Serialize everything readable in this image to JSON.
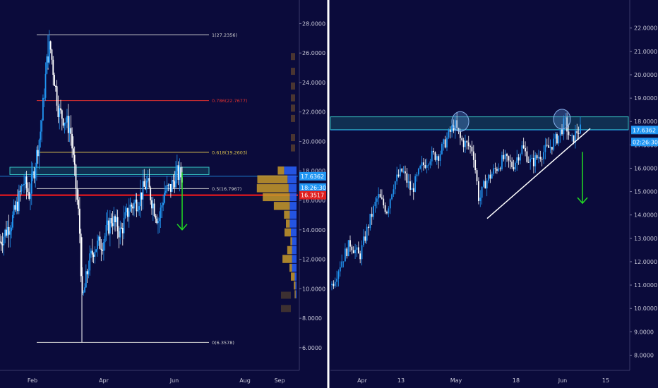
{
  "colors": {
    "background": "#0b0b3b",
    "bull": "#2196f3",
    "bear": "#ffffff",
    "divider": "#ffffff",
    "support_red": "#ff1a1a",
    "zone": "#1f8f8f",
    "arrow": "#22dd22",
    "price_tag": "#2196f3",
    "red_tag": "#e01e1e",
    "vp_up": "#2962ff",
    "vp_down": "#c89a2a"
  },
  "chart_data": [
    {
      "type": "candlestick",
      "panel": "left",
      "x_ticks": [
        "Feb",
        "Apr",
        "Jun",
        "Aug",
        "Sep"
      ],
      "y_ticks": [
        "6.0000",
        "8.0000",
        "10.0000",
        "12.0000",
        "14.0000",
        "16.0000",
        "18.0000",
        "20.0000",
        "22.0000",
        "24.0000",
        "26.0000",
        "28.0000"
      ],
      "ylim": [
        4.7,
        29.6
      ],
      "price_labels": [
        {
          "text": "17.6362",
          "value": 17.6362,
          "color": "#2196f3"
        },
        {
          "text": "18:26:30",
          "value": 17.0,
          "color": "#2196f3"
        },
        {
          "text": "16.3517",
          "value": 16.3517,
          "color": "#e01e1e"
        }
      ],
      "fibonacci": [
        {
          "label": "1(27.2356)",
          "value": 27.2356,
          "color": "#d0d0d0"
        },
        {
          "label": "0.786(22.7677)",
          "value": 22.7677,
          "color": "#e03030"
        },
        {
          "label": "0.618(19.2603)",
          "value": 19.2603,
          "color": "#d8c050"
        },
        {
          "label": "0.5(16.7967)",
          "value": 16.7967,
          "color": "#d0d0d0"
        },
        {
          "label": "0(6.3578)",
          "value": 6.3578,
          "color": "#d0d0d0"
        }
      ],
      "support_line": 16.3517,
      "resistance_zone": [
        17.75,
        18.25
      ],
      "arrow": {
        "from": 17.9,
        "to": 14.0,
        "direction": "down"
      },
      "volume_profile": [
        {
          "price": 18.0,
          "up": 0.55,
          "down": 0.2
        },
        {
          "price": 17.4,
          "up": 0.4,
          "down": 0.95
        },
        {
          "price": 16.8,
          "up": 0.35,
          "down": 1.0
        },
        {
          "price": 16.2,
          "up": 0.3,
          "down": 0.85
        },
        {
          "price": 15.6,
          "up": 0.3,
          "down": 0.5
        },
        {
          "price": 15.0,
          "up": 0.3,
          "down": 0.18
        },
        {
          "price": 14.4,
          "up": 0.3,
          "down": 0.12
        },
        {
          "price": 13.8,
          "up": 0.25,
          "down": 0.2
        },
        {
          "price": 13.2,
          "up": 0.2,
          "down": 0.05
        },
        {
          "price": 12.6,
          "up": 0.2,
          "down": 0.15
        },
        {
          "price": 12.0,
          "up": 0.2,
          "down": 0.3
        },
        {
          "price": 11.4,
          "up": 0.2,
          "down": 0.08
        },
        {
          "price": 10.8,
          "up": 0.08,
          "down": 0.12
        },
        {
          "price": 10.2,
          "up": 0.05,
          "down": 0.05
        },
        {
          "price": 9.6,
          "up": 0.04,
          "down": 0.03
        }
      ],
      "closes": [
        {
          "t": 0.0,
          "c": 13.2
        },
        {
          "t": 0.02,
          "c": 13.9
        },
        {
          "t": 0.04,
          "c": 14.6
        },
        {
          "t": 0.06,
          "c": 15.8
        },
        {
          "t": 0.08,
          "c": 17.3
        },
        {
          "t": 0.1,
          "c": 16.4
        },
        {
          "t": 0.12,
          "c": 18.5
        },
        {
          "t": 0.14,
          "c": 21.0
        },
        {
          "t": 0.16,
          "c": 25.5
        },
        {
          "t": 0.17,
          "c": 26.6
        },
        {
          "t": 0.18,
          "c": 25.0
        },
        {
          "t": 0.2,
          "c": 22.0
        },
        {
          "t": 0.22,
          "c": 21.5
        },
        {
          "t": 0.24,
          "c": 20.8
        },
        {
          "t": 0.26,
          "c": 16.5
        },
        {
          "t": 0.27,
          "c": 14.5
        },
        {
          "t": 0.28,
          "c": 9.0
        },
        {
          "t": 0.3,
          "c": 11.5
        },
        {
          "t": 0.32,
          "c": 12.8
        },
        {
          "t": 0.35,
          "c": 13.2
        },
        {
          "t": 0.38,
          "c": 14.8
        },
        {
          "t": 0.41,
          "c": 13.8
        },
        {
          "t": 0.44,
          "c": 15.5
        },
        {
          "t": 0.47,
          "c": 16.0
        },
        {
          "t": 0.5,
          "c": 17.2
        },
        {
          "t": 0.52,
          "c": 15.8
        },
        {
          "t": 0.54,
          "c": 14.6
        },
        {
          "t": 0.56,
          "c": 16.6
        },
        {
          "t": 0.58,
          "c": 16.8
        },
        {
          "t": 0.6,
          "c": 17.8
        },
        {
          "t": 0.62,
          "c": 17.64
        }
      ]
    },
    {
      "type": "candlestick",
      "panel": "right",
      "x_ticks": [
        "Apr",
        "13",
        "May",
        "18",
        "Jun",
        "15"
      ],
      "y_ticks": [
        "8.0000",
        "9.0000",
        "10.0000",
        "11.0000",
        "12.0000",
        "13.0000",
        "14.0000",
        "15.0000",
        "16.0000",
        "17.0000",
        "18.0000",
        "19.0000",
        "20.0000",
        "21.0000",
        "22.0000"
      ],
      "ylim": [
        7.5,
        23.2
      ],
      "price_labels": [
        {
          "text": "17.6362",
          "value": 17.6362,
          "color": "#2196f3"
        },
        {
          "text": "02:26:30",
          "value": 17.0,
          "color": "#2196f3"
        }
      ],
      "resistance_zone": [
        17.65,
        18.2
      ],
      "highlight_circles": [
        18.0,
        18.1
      ],
      "trendline": {
        "from": 13.85,
        "to": 17.7
      },
      "arrow": {
        "from": 16.7,
        "to": 14.5,
        "direction": "down"
      },
      "closes": [
        {
          "t": 0.0,
          "c": 11.0
        },
        {
          "t": 0.03,
          "c": 12.0
        },
        {
          "t": 0.06,
          "c": 12.8
        },
        {
          "t": 0.09,
          "c": 12.2
        },
        {
          "t": 0.12,
          "c": 13.6
        },
        {
          "t": 0.15,
          "c": 14.8
        },
        {
          "t": 0.18,
          "c": 14.2
        },
        {
          "t": 0.2,
          "c": 15.3
        },
        {
          "t": 0.23,
          "c": 15.9
        },
        {
          "t": 0.26,
          "c": 15.0
        },
        {
          "t": 0.29,
          "c": 16.0
        },
        {
          "t": 0.32,
          "c": 16.5
        },
        {
          "t": 0.35,
          "c": 16.6
        },
        {
          "t": 0.38,
          "c": 17.4
        },
        {
          "t": 0.4,
          "c": 17.9
        },
        {
          "t": 0.42,
          "c": 17.2
        },
        {
          "t": 0.44,
          "c": 17.0
        },
        {
          "t": 0.46,
          "c": 16.8
        },
        {
          "t": 0.48,
          "c": 14.6
        },
        {
          "t": 0.5,
          "c": 15.4
        },
        {
          "t": 0.53,
          "c": 15.9
        },
        {
          "t": 0.56,
          "c": 16.4
        },
        {
          "t": 0.59,
          "c": 16.1
        },
        {
          "t": 0.62,
          "c": 16.9
        },
        {
          "t": 0.65,
          "c": 16.2
        },
        {
          "t": 0.68,
          "c": 16.6
        },
        {
          "t": 0.71,
          "c": 16.9
        },
        {
          "t": 0.74,
          "c": 17.4
        },
        {
          "t": 0.76,
          "c": 18.0
        },
        {
          "t": 0.78,
          "c": 17.1
        },
        {
          "t": 0.8,
          "c": 17.6
        },
        {
          "t": 0.81,
          "c": 17.64
        }
      ]
    }
  ]
}
